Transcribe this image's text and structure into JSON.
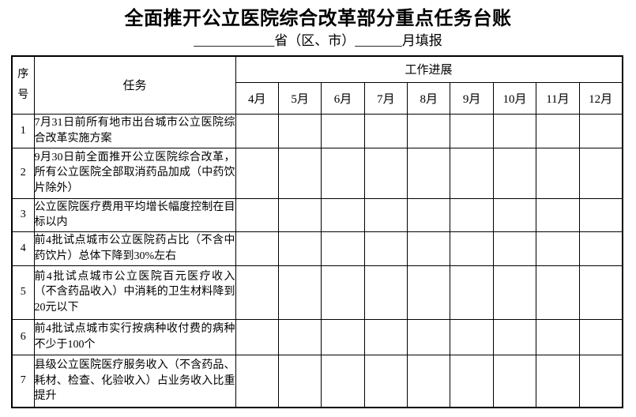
{
  "page": {
    "title": "全面推开公立医院综合改革部分重点任务台账",
    "subtitle": {
      "province_blank": "____________",
      "province_label": "省（区、市）",
      "month_blank": "_______",
      "suffix": "月填报"
    }
  },
  "table": {
    "headers": {
      "index_label": "序号",
      "task_label": "任务",
      "progress_label": "工作进展",
      "months": [
        "4月",
        "5月",
        "6月",
        "7月",
        "8月",
        "9月",
        "10月",
        "11月",
        "12月"
      ]
    },
    "rows": [
      {
        "no": "1",
        "task": "7月31日前所有地市出台城市公立医院综合改革实施方案",
        "progress": [
          "",
          "",
          "",
          "",
          "",
          "",
          "",
          "",
          ""
        ]
      },
      {
        "no": "2",
        "task": "9月30日前全面推开公立医院综合改革，所有公立医院全部取消药品加成（中药饮片除外）",
        "progress": [
          "",
          "",
          "",
          "",
          "",
          "",
          "",
          "",
          ""
        ]
      },
      {
        "no": "3",
        "task": "公立医院医疗费用平均增长幅度控制在目标以内",
        "progress": [
          "",
          "",
          "",
          "",
          "",
          "",
          "",
          "",
          ""
        ]
      },
      {
        "no": "4",
        "task": "前4批试点城市公立医院药占比（不含中药饮片）总体下降到30%左右",
        "progress": [
          "",
          "",
          "",
          "",
          "",
          "",
          "",
          "",
          ""
        ]
      },
      {
        "no": "5",
        "task": "前4批试点城市公立医院百元医疗收入（不含药品收入）中消耗的卫生材料降到20元以下",
        "progress": [
          "",
          "",
          "",
          "",
          "",
          "",
          "",
          "",
          ""
        ]
      },
      {
        "no": "6",
        "task": "前4批试点城市实行按病种收付费的病种不少于100个",
        "progress": [
          "",
          "",
          "",
          "",
          "",
          "",
          "",
          "",
          ""
        ]
      },
      {
        "no": "7",
        "task": "县级公立医院医疗服务收入（不含药品、耗材、检查、化验收入）占业务收入比重提升",
        "progress": [
          "",
          "",
          "",
          "",
          "",
          "",
          "",
          "",
          ""
        ]
      }
    ]
  }
}
